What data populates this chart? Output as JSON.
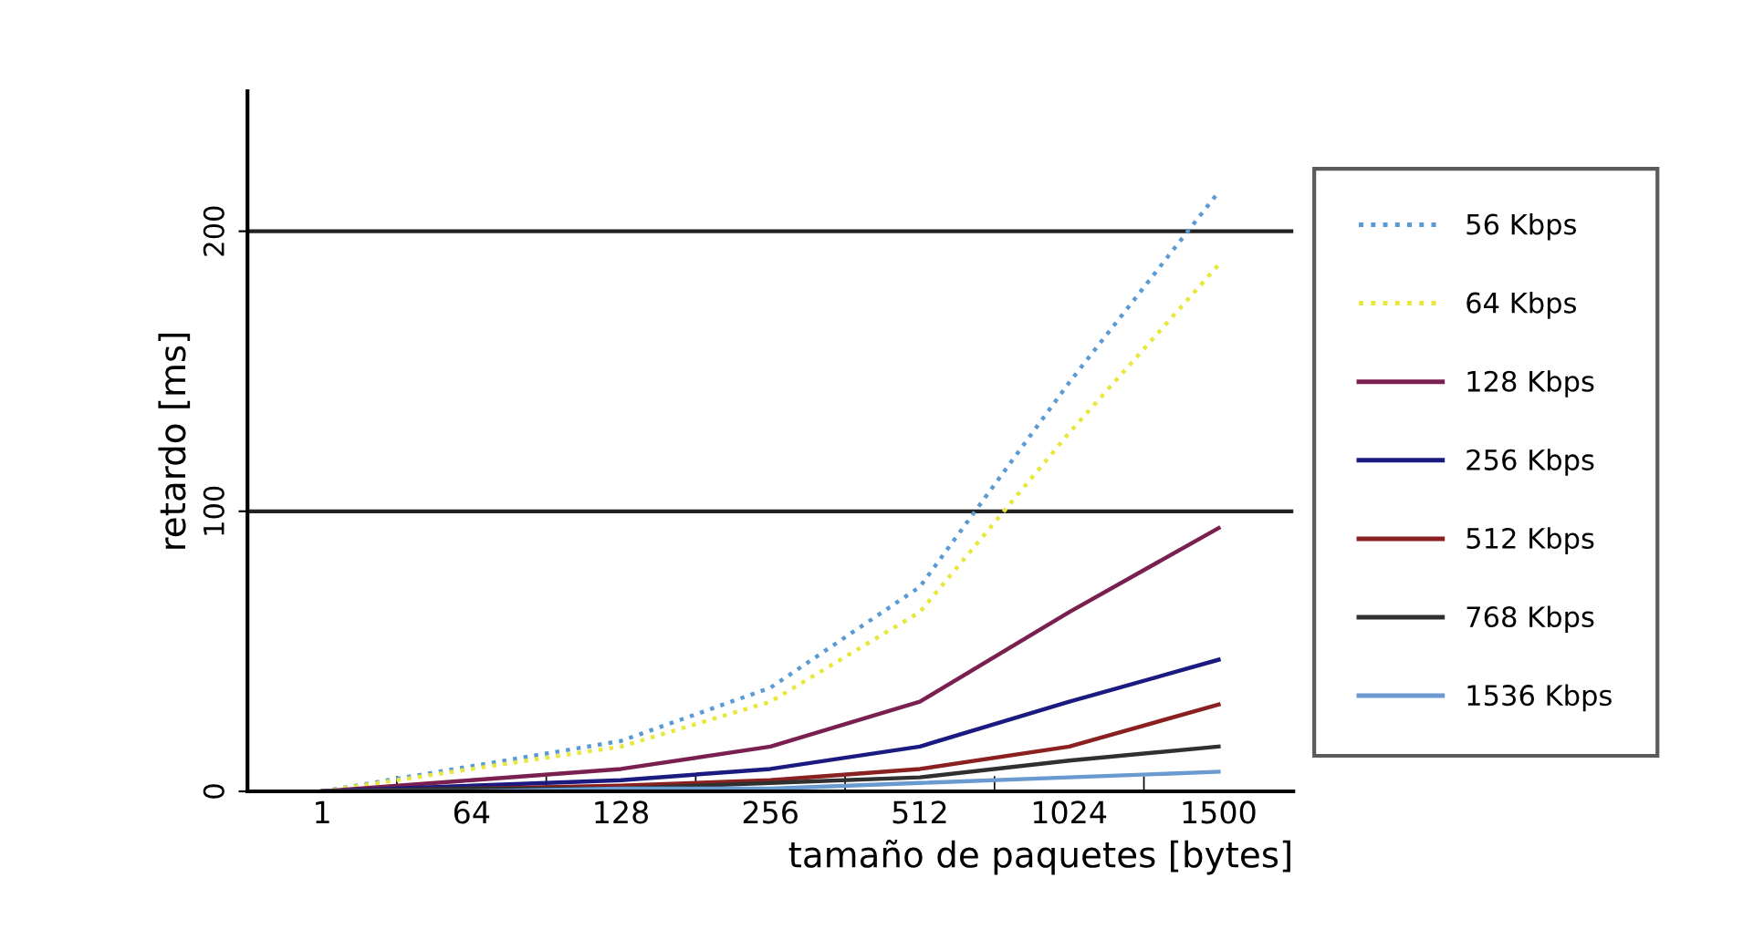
{
  "chart_data": {
    "type": "line",
    "xlabel": "tamaño de paquetes [bytes]",
    "ylabel": "retardo [ms]",
    "categories": [
      "1",
      "64",
      "128",
      "256",
      "512",
      "1024",
      "1500"
    ],
    "ylim": [
      0,
      250
    ],
    "yticks": [
      0,
      100,
      200
    ],
    "grid": "y",
    "legend": "right",
    "marker": "none",
    "series": [
      {
        "name": "56 Kbps",
        "color": "#5b9bd5",
        "line_style": "dotted",
        "values": [
          0,
          9,
          18,
          37,
          73,
          146,
          214
        ]
      },
      {
        "name": "64 Kbps",
        "color": "#e8e83a",
        "line_style": "dotted",
        "values": [
          0,
          8,
          16,
          32,
          64,
          128,
          188
        ]
      },
      {
        "name": "128 Kbps",
        "color": "#7a2050",
        "values": [
          0,
          4,
          8,
          16,
          32,
          64,
          94
        ]
      },
      {
        "name": "256 Kbps",
        "color": "#1a1a80",
        "values": [
          0,
          2,
          4,
          8,
          16,
          32,
          47
        ]
      },
      {
        "name": "512 Kbps",
        "color": "#8b2020",
        "values": [
          0,
          1,
          2,
          4,
          8,
          16,
          31
        ]
      },
      {
        "name": "768 Kbps",
        "color": "#303030",
        "values": [
          0,
          1,
          1,
          3,
          5,
          11,
          16
        ]
      },
      {
        "name": "1536 Kbps",
        "color": "#6a9ad0",
        "values": [
          0,
          0,
          1,
          1,
          3,
          5,
          7
        ]
      }
    ]
  }
}
